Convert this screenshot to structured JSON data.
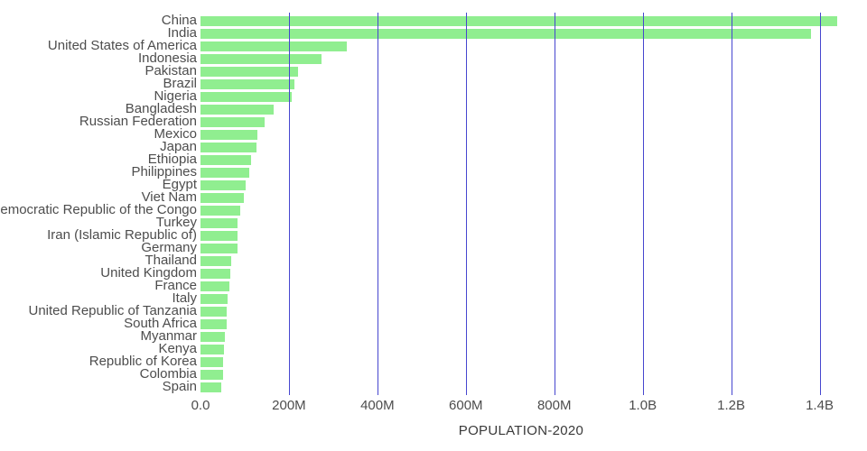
{
  "chart_data": {
    "type": "bar",
    "orientation": "horizontal",
    "title": "",
    "xlabel": "POPULATION-2020",
    "ylabel": "",
    "xlim": [
      0,
      1450000000
    ],
    "grid": true,
    "legend": false,
    "x_ticks": [
      {
        "value": 0,
        "label": "0.0"
      },
      {
        "value": 200000000,
        "label": "200M"
      },
      {
        "value": 400000000,
        "label": "400M"
      },
      {
        "value": 600000000,
        "label": "600M"
      },
      {
        "value": 800000000,
        "label": "800M"
      },
      {
        "value": 1000000000,
        "label": "1.0B"
      },
      {
        "value": 1200000000,
        "label": "1.2B"
      },
      {
        "value": 1400000000,
        "label": "1.4B"
      }
    ],
    "categories": [
      "China",
      "India",
      "United States of America",
      "Indonesia",
      "Pakistan",
      "Brazil",
      "Nigeria",
      "Bangladesh",
      "Russian Federation",
      "Mexico",
      "Japan",
      "Ethiopia",
      "Philippines",
      "Egypt",
      "Viet Nam",
      "Democratic Republic of the Congo",
      "Turkey",
      "Iran (Islamic Republic of)",
      "Germany",
      "Thailand",
      "United Kingdom",
      "France",
      "Italy",
      "United Republic of Tanzania",
      "South Africa",
      "Myanmar",
      "Kenya",
      "Republic of Korea",
      "Colombia",
      "Spain"
    ],
    "values": [
      1439323776,
      1380004385,
      331002651,
      273523615,
      220892340,
      212559417,
      206139589,
      164689383,
      145934462,
      128932753,
      126476461,
      114963588,
      109581078,
      102334404,
      97338579,
      89561403,
      84339067,
      83992949,
      83783942,
      69799978,
      67886011,
      65273511,
      60461826,
      59734218,
      59308690,
      54409800,
      53771296,
      51269185,
      50882891,
      46754778
    ],
    "colors": {
      "bar": "#90ee90",
      "gridline": "#4646cf",
      "label_text": "#4d4d4d",
      "axis_text": "#4d4d4d"
    }
  }
}
